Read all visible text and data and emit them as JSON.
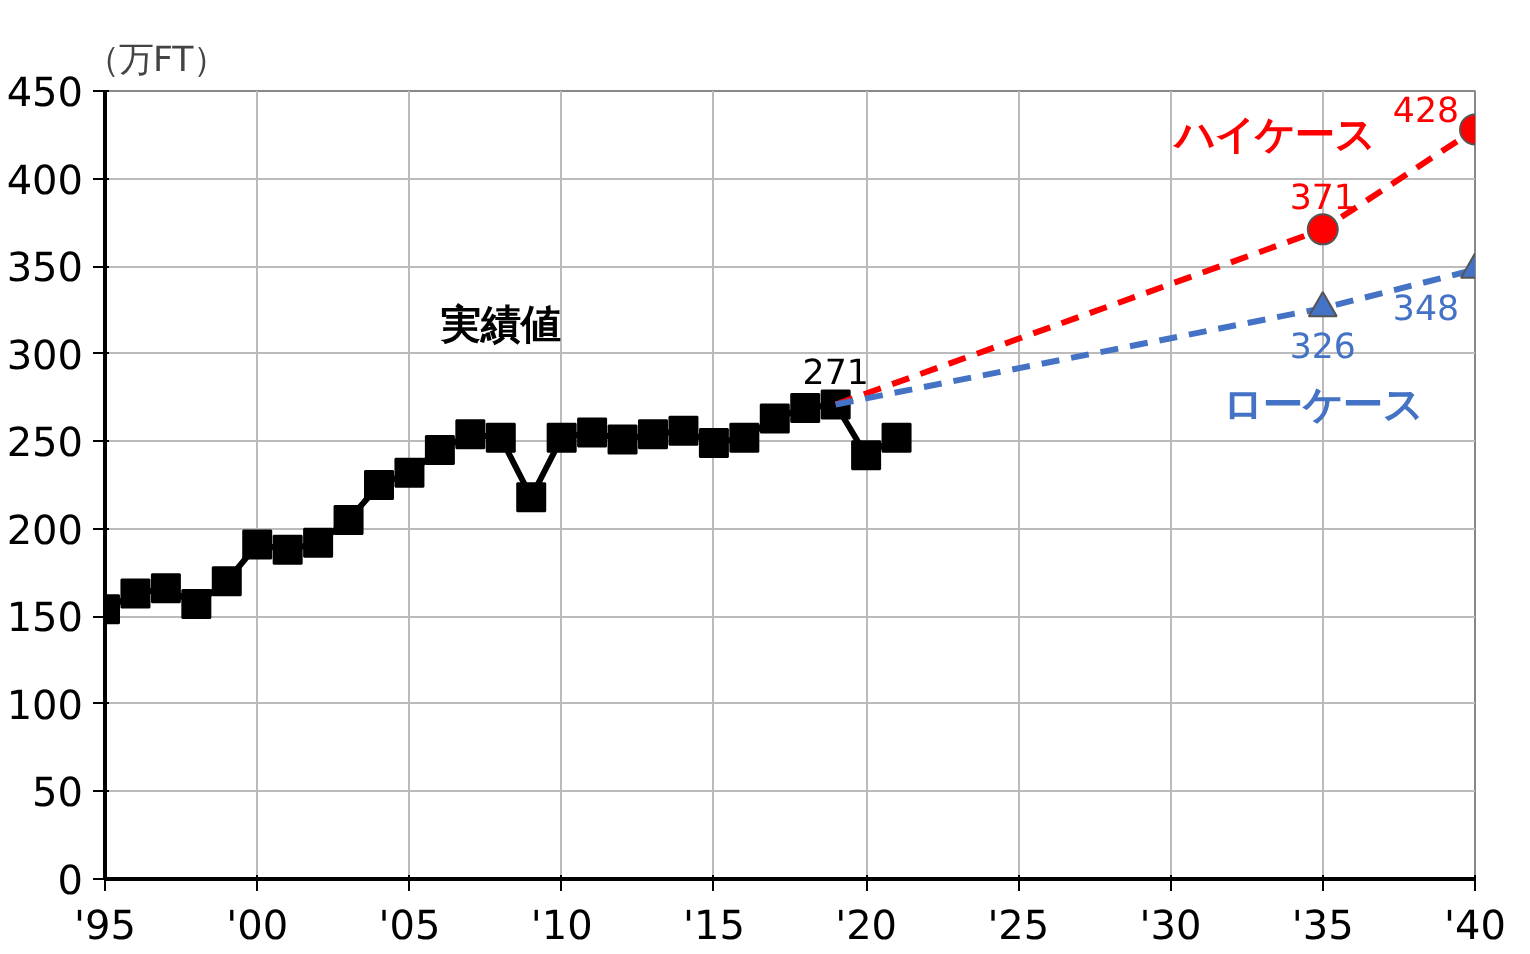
{
  "chart_data": {
    "type": "line",
    "ylabel": "（万FT）",
    "xlim": [
      1995,
      2040
    ],
    "ylim": [
      0,
      450
    ],
    "xticks": [
      {
        "value": 1995,
        "label": "'95"
      },
      {
        "value": 2000,
        "label": "'00"
      },
      {
        "value": 2005,
        "label": "'05"
      },
      {
        "value": 2010,
        "label": "'10"
      },
      {
        "value": 2015,
        "label": "'15"
      },
      {
        "value": 2020,
        "label": "'20"
      },
      {
        "value": 2025,
        "label": "'25"
      },
      {
        "value": 2030,
        "label": "'30"
      },
      {
        "value": 2035,
        "label": "'35"
      },
      {
        "value": 2040,
        "label": "'40"
      }
    ],
    "yticks": [
      0,
      50,
      100,
      150,
      200,
      250,
      300,
      350,
      400,
      450
    ],
    "grid": true,
    "series": [
      {
        "name": "実績値",
        "color": "#000000",
        "marker": "square",
        "line_style": "solid",
        "x": [
          1995,
          1996,
          1997,
          1998,
          1999,
          2000,
          2001,
          2002,
          2003,
          2004,
          2005,
          2006,
          2007,
          2008,
          2009,
          2010,
          2011,
          2012,
          2013,
          2014,
          2015,
          2016,
          2017,
          2018,
          2019,
          2020,
          2021
        ],
        "values": [
          154,
          163,
          166,
          157,
          170,
          191,
          188,
          192,
          205,
          225,
          232,
          245,
          254,
          252,
          218,
          252,
          255,
          251,
          254,
          256,
          249,
          252,
          263,
          269,
          271,
          242,
          252
        ],
        "value_labels": [
          null,
          null,
          null,
          null,
          null,
          null,
          null,
          null,
          null,
          null,
          null,
          null,
          null,
          null,
          null,
          null,
          null,
          null,
          null,
          null,
          null,
          null,
          null,
          null,
          "271",
          null,
          null
        ]
      },
      {
        "name": "ハイケース",
        "color": "#ff0000",
        "marker": "circle",
        "line_style": "dashed",
        "x": [
          2019,
          2035,
          2040
        ],
        "values": [
          271,
          371,
          428
        ],
        "value_labels": [
          null,
          "371",
          "428"
        ]
      },
      {
        "name": "ローケース",
        "color": "#4472c4",
        "marker": "triangle",
        "line_style": "dashed",
        "x": [
          2019,
          2035,
          2040
        ],
        "values": [
          271,
          326,
          348
        ],
        "value_labels": [
          null,
          "326",
          "348"
        ]
      }
    ]
  }
}
